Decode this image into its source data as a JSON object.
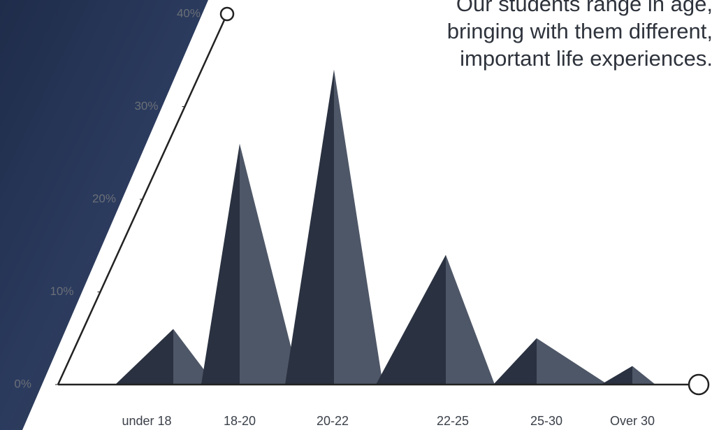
{
  "chart_data": {
    "type": "peak",
    "annotations": [
      "Our students range in age,",
      "bringing with them different,",
      "important life experiences."
    ],
    "categories": [
      "under 18",
      "18-20",
      "20-22",
      "22-25",
      "25-30",
      "Over 30"
    ],
    "values": [
      6,
      26,
      34,
      14,
      5,
      2
    ],
    "colors": [
      "#2a3140",
      "#4e5767"
    ],
    "ylim": [
      0,
      40
    ],
    "yticks": [
      {
        "value": 0,
        "label": "0%"
      },
      {
        "value": 10,
        "label": "10%"
      },
      {
        "value": 20,
        "label": "20%"
      },
      {
        "value": 30,
        "label": "30%"
      },
      {
        "value": 40,
        "label": "40%"
      }
    ]
  }
}
